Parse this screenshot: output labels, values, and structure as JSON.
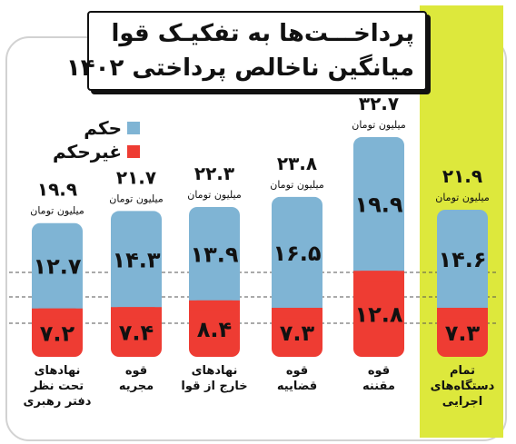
{
  "header": {
    "line1": "پرداخـــت‌ها به تفکیـک قوا",
    "line2": "میانگین ناخالص پرداختی ۱۴۰۲"
  },
  "legend": {
    "hokm": "حکم",
    "gheir_hokm": "غیرحکم"
  },
  "unit": "میلیون تومان",
  "colors": {
    "hokm": "#7fb4d4",
    "gheir_hokm": "#ee3c33",
    "highlight": "#dde83c"
  },
  "chart_data": {
    "type": "bar",
    "stacked": true,
    "categories": [
      [
        "تمام",
        "دستگاه‌های",
        "اجرایی"
      ],
      [
        "قوه",
        "مقننه"
      ],
      [
        "قوه",
        "قضاییه"
      ],
      [
        "نهادهای",
        "خارج از قوا"
      ],
      [
        "قوه",
        "مجریه"
      ],
      [
        "نهادهای",
        "تحت نظر",
        "دفتر رهبری"
      ]
    ],
    "totals": [
      21.9,
      32.7,
      23.8,
      22.3,
      21.7,
      19.9
    ],
    "total_labels": [
      "۲۱.۹",
      "۳۲.۷",
      "۲۳.۸",
      "۲۲.۳",
      "۲۱.۷",
      "۱۹.۹"
    ],
    "series": [
      {
        "name": "حکم",
        "values": [
          14.6,
          19.9,
          16.5,
          13.9,
          14.3,
          12.7
        ],
        "labels": [
          "۱۴.۶",
          "۱۹.۹",
          "۱۶.۵",
          "۱۳.۹",
          "۱۴.۳",
          "۱۲.۷"
        ]
      },
      {
        "name": "غیرحکم",
        "values": [
          7.3,
          12.8,
          7.3,
          8.4,
          7.4,
          7.2
        ],
        "labels": [
          "۷.۳",
          "۱۲.۸",
          "۷.۳",
          "۸.۴",
          "۷.۴",
          "۷.۲"
        ]
      }
    ],
    "highlighted_category": 0
  }
}
